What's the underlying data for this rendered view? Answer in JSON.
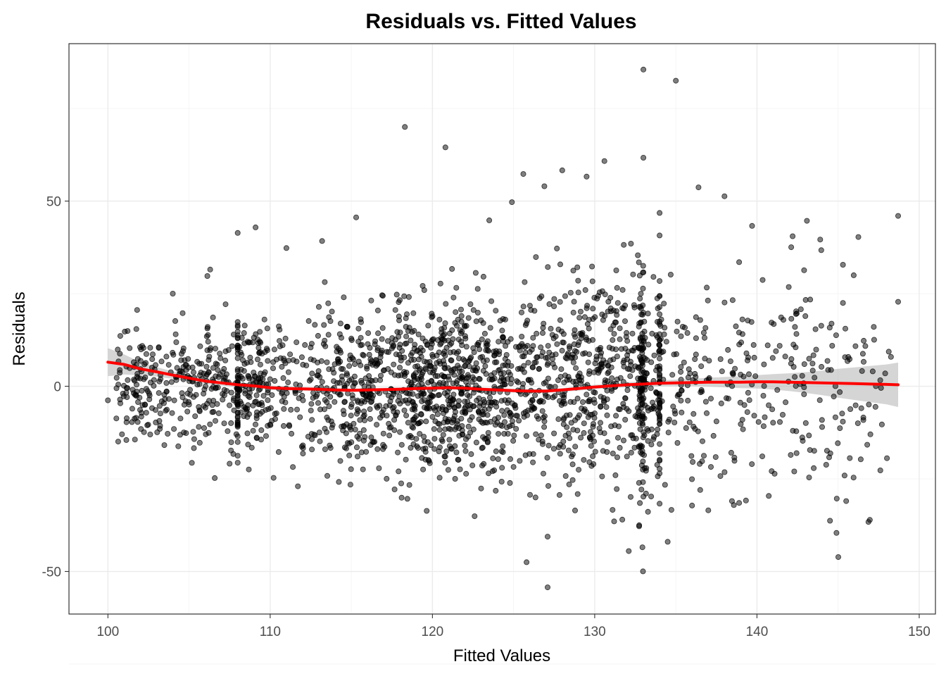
{
  "chart_data": {
    "type": "scatter",
    "title": "Residuals vs. Fitted Values",
    "xlabel": "Fitted Values",
    "ylabel": "Residuals",
    "xlim": [
      97.6,
      151.0
    ],
    "ylim": [
      -61.5,
      92.5
    ],
    "x_ticks": [
      100,
      110,
      120,
      130,
      140,
      150
    ],
    "x_tick_labels": [
      "100",
      "110",
      "120",
      "130",
      "140",
      "150"
    ],
    "y_ticks": [
      -50,
      0,
      50
    ],
    "y_tick_labels": [
      "-50",
      "0",
      "50"
    ],
    "grid": true,
    "legend": "none",
    "point_color": "#000000",
    "point_opacity": 0.5,
    "smooth_color": "#ff0000",
    "band_color": "#b3b3b3",
    "outlier_points": {
      "x": [
        133.0,
        135.0,
        118.3,
        120.8,
        133.0,
        130.6,
        128.0,
        125.6,
        129.5,
        126.9,
        124.9,
        138.0,
        136.4,
        115.3,
        108.0,
        109.1,
        113.2,
        111.0,
        123.5,
        148.7,
        148.7,
        134.0,
        139.7,
        142.2,
        143.9,
        145.3,
        145.3,
        104.0,
        106.3,
        101.8,
        100.0,
        103.2,
        105.3,
        127.1,
        125.8,
        127.1,
        132.1,
        134.5,
        144.5,
        144.9,
        145.5,
        145.4,
        138.9,
        142.3,
        143.5,
        134.0,
        136.0,
        137.0,
        118.1,
        123.0,
        133.0,
        122.6,
        111.4,
        107.5,
        123.9,
        131.7
      ],
      "y": [
        85.5,
        82.5,
        70.0,
        64.5,
        61.7,
        60.8,
        58.3,
        57.3,
        56.6,
        54.0,
        49.7,
        51.3,
        53.7,
        45.6,
        41.4,
        42.9,
        39.2,
        37.3,
        44.8,
        46.0,
        22.8,
        46.8,
        43.3,
        40.5,
        39.6,
        32.8,
        22.5,
        25.0,
        31.5,
        20.6,
        -3.8,
        -11.5,
        -16.7,
        -54.3,
        -47.5,
        -40.6,
        -44.5,
        -42.0,
        -36.3,
        -39.6,
        -31.0,
        -24.1,
        -31.5,
        -23.0,
        -22.1,
        -31.7,
        -32.2,
        -33.5,
        -30.1,
        -27.6,
        -29.8,
        -35.1,
        -21.8,
        -20.9,
        -28.2,
        -36.0
      ]
    },
    "smooth_line": {
      "x": [
        100.0,
        101.0,
        102.0,
        103.0,
        104.0,
        105.0,
        106.0,
        107.0,
        108.0,
        109.0,
        110.0,
        111.0,
        112.0,
        113.0,
        114.0,
        115.0,
        116.0,
        117.0,
        118.0,
        119.0,
        120.0,
        121.0,
        122.0,
        123.0,
        124.0,
        125.0,
        126.0,
        127.0,
        128.0,
        129.0,
        130.0,
        131.0,
        132.0,
        133.0,
        134.0,
        135.0,
        136.0,
        137.0,
        138.0,
        139.0,
        140.0,
        141.0,
        142.0,
        143.0,
        144.0,
        145.0,
        146.0,
        147.0,
        148.0,
        148.7
      ],
      "y": [
        6.5,
        5.9,
        4.7,
        3.9,
        3.0,
        2.2,
        1.4,
        0.9,
        0.4,
        0.1,
        -0.4,
        -0.6,
        -0.7,
        -0.8,
        -1.0,
        -1.1,
        -1.0,
        -0.9,
        -0.8,
        -0.6,
        -0.5,
        -0.4,
        -0.5,
        -0.8,
        -1.0,
        -1.2,
        -1.3,
        -1.3,
        -1.0,
        -0.6,
        -0.2,
        0.1,
        0.4,
        0.6,
        0.8,
        0.9,
        1.0,
        1.1,
        1.1,
        1.1,
        1.2,
        1.2,
        1.1,
        1.0,
        0.9,
        0.8,
        0.7,
        0.6,
        0.5,
        0.4
      ],
      "ci_half_width": [
        3.8,
        2.7,
        1.8,
        1.3,
        1.0,
        0.9,
        0.8,
        0.7,
        0.7,
        0.6,
        0.6,
        0.6,
        0.5,
        0.5,
        0.5,
        0.5,
        0.5,
        0.5,
        0.5,
        0.5,
        0.5,
        0.5,
        0.5,
        0.5,
        0.5,
        0.5,
        0.5,
        0.5,
        0.5,
        0.6,
        0.6,
        0.6,
        0.7,
        0.7,
        0.8,
        0.9,
        1.0,
        1.2,
        1.4,
        1.6,
        1.8,
        2.1,
        2.4,
        2.8,
        3.3,
        3.9,
        4.4,
        4.9,
        5.4,
        6.0
      ]
    }
  }
}
